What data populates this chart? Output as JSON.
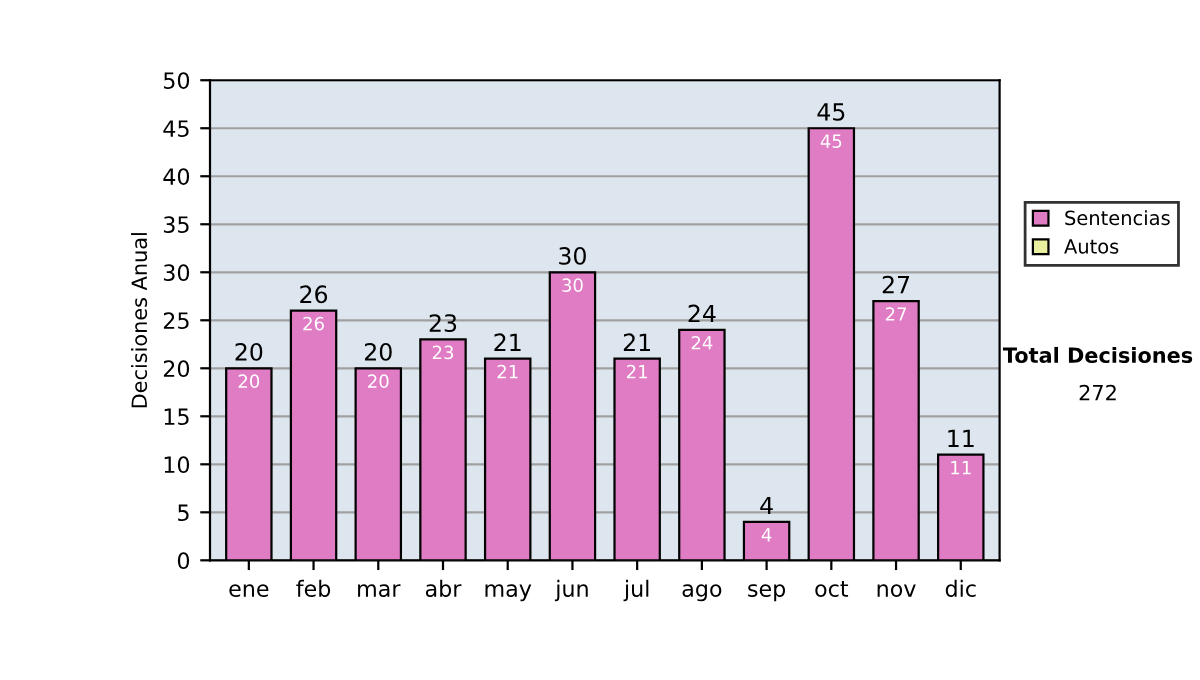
{
  "chart_data": {
    "type": "bar",
    "ylabel": "Decisiones Anual",
    "categories": [
      "ene",
      "feb",
      "mar",
      "abr",
      "may",
      "jun",
      "jul",
      "ago",
      "sep",
      "oct",
      "nov",
      "dic"
    ],
    "series": [
      {
        "name": "Sentencias",
        "color": "#e07cc4",
        "values": [
          20,
          26,
          20,
          23,
          21,
          30,
          21,
          24,
          4,
          45,
          27,
          11
        ],
        "value_labels": [
          "20",
          "26",
          "20",
          "23",
          "21",
          "30",
          "21",
          "24",
          "4",
          "45",
          "27",
          "11"
        ]
      },
      {
        "name": "Autos",
        "color": "#e8f0a0",
        "values": [
          null,
          null,
          null,
          null,
          null,
          null,
          null,
          null,
          null,
          null,
          null,
          null
        ]
      }
    ],
    "stacked": true,
    "totals": [
      "20",
      "26",
      "20",
      "23",
      "21",
      "30",
      "21",
      "24",
      "4",
      "45",
      "27",
      "11"
    ],
    "ylim": [
      0,
      50
    ],
    "yticks": [
      0,
      5,
      10,
      15,
      20,
      25,
      30,
      35,
      40,
      45,
      50
    ],
    "grid": "y",
    "legend": "right",
    "annotations": [
      "Total Decisiones",
      "272"
    ]
  }
}
